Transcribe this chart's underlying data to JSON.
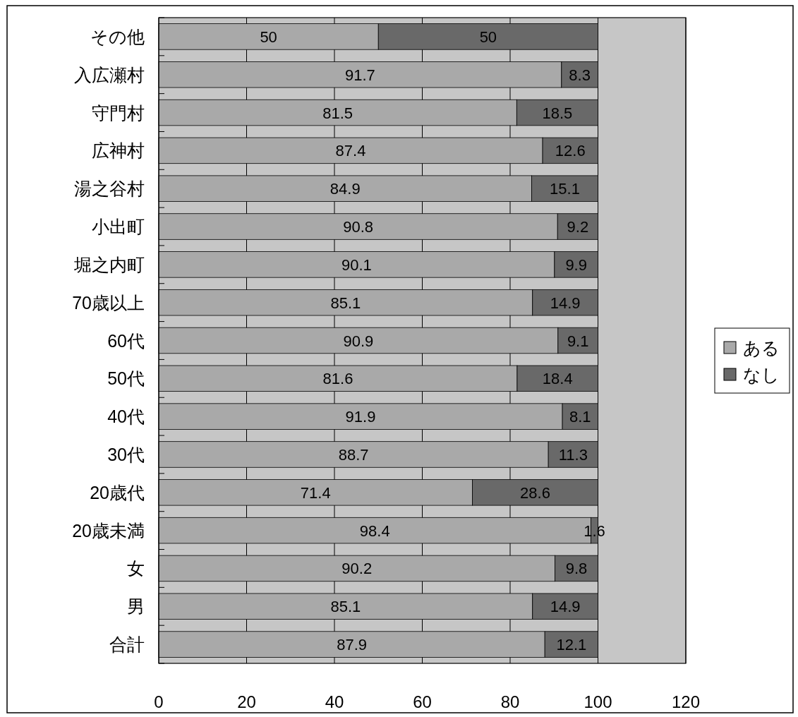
{
  "chart_data": {
    "type": "bar",
    "orientation": "horizontal",
    "stacked": true,
    "categories": [
      "その他",
      "入広瀬村",
      "守門村",
      "広神村",
      "湯之谷村",
      "小出町",
      "堀之内町",
      "70歳以上",
      "60代",
      "50代",
      "40代",
      "30代",
      "20歳代",
      "20歳未満",
      "女",
      "男",
      "合計"
    ],
    "series": [
      {
        "name": "ある",
        "color": "#a9a9a9",
        "values": [
          50,
          91.7,
          81.5,
          87.4,
          84.9,
          90.8,
          90.1,
          85.1,
          90.9,
          81.6,
          91.9,
          88.7,
          71.4,
          98.4,
          90.2,
          85.1,
          87.9
        ]
      },
      {
        "name": "なし",
        "color": "#696969",
        "values": [
          50,
          8.3,
          18.5,
          12.6,
          15.1,
          9.2,
          9.9,
          14.9,
          9.1,
          18.4,
          8.1,
          11.3,
          28.6,
          1.6,
          9.8,
          14.9,
          12.1
        ]
      }
    ],
    "xlim": [
      0,
      120
    ],
    "xticks": [
      0,
      20,
      40,
      60,
      80,
      100,
      120
    ],
    "grid": "x",
    "legend": "right",
    "data_labels": true
  }
}
